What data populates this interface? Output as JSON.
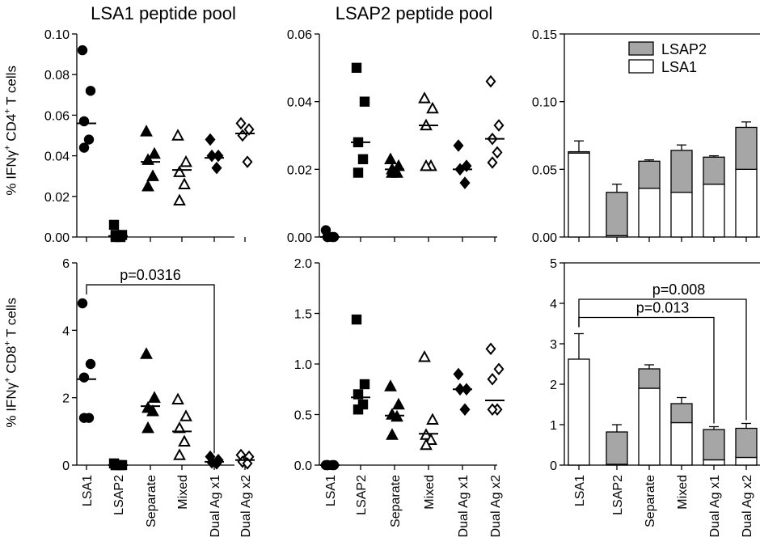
{
  "titles": {
    "left": "LSA1 peptide pool",
    "middle": "LSAP2 peptide pool"
  },
  "ylabels": {
    "top": {
      "pre": "% IFN",
      "g": "γ",
      "sup1": "+",
      "mid": " CD4",
      "sup2": "+",
      "post": " T cells"
    },
    "bottom": {
      "pre": "% IFN",
      "g": "γ",
      "sup1": "+",
      "mid": " CD8",
      "sup2": "+",
      "post": " T cells"
    }
  },
  "chart_data": [
    {
      "type": "scatter",
      "panel": "top-left",
      "title": "LSA1 peptide pool",
      "categories": [
        "LSA1",
        "LSAP2",
        "Separate",
        "Mixed",
        "Dual Ag x1",
        "Dual Ag x2"
      ],
      "ylim": [
        0,
        0.1
      ],
      "yticks": [
        "0.00",
        "0.02",
        "0.04",
        "0.06",
        "0.08",
        "0.10"
      ],
      "markers": [
        "circle",
        "square",
        "triangle",
        "triangle-open",
        "diamond",
        "diamond-open"
      ],
      "points": [
        [
          0.092,
          0.072,
          0.057,
          0.048,
          0.044
        ],
        [
          0.006,
          0.001,
          0.001,
          0.0,
          0.0
        ],
        [
          0.052,
          0.041,
          0.038,
          0.03,
          0.025
        ],
        [
          0.05,
          0.037,
          0.032,
          0.026,
          0.018
        ],
        [
          0.048,
          0.04,
          0.04,
          0.034
        ],
        [
          0.056,
          0.053,
          0.05,
          0.037
        ]
      ],
      "medians": [
        0.056,
        0.0005,
        0.037,
        0.033,
        0.039,
        0.051
      ]
    },
    {
      "type": "scatter",
      "panel": "top-middle",
      "title": "LSAP2 peptide pool",
      "categories": [
        "LSA1",
        "LSAP2",
        "Separate",
        "Mixed",
        "Dual Ag x1",
        "Dual Ag x2"
      ],
      "ylim": [
        0,
        0.06
      ],
      "yticks": [
        "0.00",
        "0.02",
        "0.04",
        "0.06"
      ],
      "markers": [
        "circle",
        "square",
        "triangle",
        "triangle-open",
        "diamond",
        "diamond-open"
      ],
      "points": [
        [
          0.002,
          0.0,
          0.0,
          0.0,
          0.0
        ],
        [
          0.05,
          0.04,
          0.028,
          0.023,
          0.019
        ],
        [
          0.023,
          0.021,
          0.02,
          0.019,
          0.019
        ],
        [
          0.041,
          0.038,
          0.033,
          0.021,
          0.021
        ],
        [
          0.027,
          0.021,
          0.02,
          0.016
        ],
        [
          0.046,
          0.033,
          0.029,
          0.025,
          0.022
        ]
      ],
      "medians": [
        0.0,
        0.028,
        0.02,
        0.033,
        0.02,
        0.029
      ]
    },
    {
      "type": "bar",
      "panel": "top-right",
      "stacked": true,
      "categories": [
        "LSA1",
        "LSAP2",
        "Separate",
        "Mixed",
        "Dual Ag x1",
        "Dual Ag x2"
      ],
      "ylim": [
        0,
        0.15
      ],
      "yticks": [
        "0.00",
        "0.05",
        "0.10",
        "0.15"
      ],
      "legend": "top-right",
      "series": [
        {
          "name": "LSA1",
          "color": "#ffffff",
          "values": [
            0.062,
            0.001,
            0.036,
            0.033,
            0.039,
            0.05
          ],
          "errors": [
            0.0,
            0.0015,
            0.004,
            0.004,
            0.004,
            0.003
          ]
        },
        {
          "name": "LSAP2",
          "color": "#a6a6a6",
          "values": [
            0.001,
            0.032,
            0.02,
            0.031,
            0.02,
            0.031
          ],
          "errors": [
            0.008,
            0.006,
            0.001,
            0.004,
            0.001,
            0.004
          ]
        }
      ]
    },
    {
      "type": "scatter",
      "panel": "bottom-left",
      "categories": [
        "LSA1",
        "LSAP2",
        "Separate",
        "Mixed",
        "Dual Ag x1",
        "Dual Ag x2"
      ],
      "ylim": [
        0,
        6
      ],
      "yticks": [
        "0",
        "2",
        "4",
        "6"
      ],
      "markers": [
        "circle",
        "square",
        "triangle",
        "triangle-open",
        "diamond",
        "diamond-open"
      ],
      "points": [
        [
          4.8,
          3.0,
          2.6,
          1.4,
          1.4
        ],
        [
          0.05,
          0.0,
          0.0,
          0.0,
          0.0
        ],
        [
          3.3,
          2.0,
          1.7,
          1.6,
          1.1
        ],
        [
          1.95,
          1.45,
          1.1,
          0.7,
          0.3
        ],
        [
          0.25,
          0.15,
          0.08,
          0.05
        ],
        [
          0.3,
          0.25,
          0.1,
          0.05
        ]
      ],
      "medians": [
        2.55,
        0.0,
        1.75,
        1.0,
        0.1,
        0.15
      ],
      "annotations": [
        {
          "text": "p=0.0316",
          "from": "LSA1",
          "to": "Dual Ag x1",
          "y": 5.35
        }
      ]
    },
    {
      "type": "scatter",
      "panel": "bottom-middle",
      "categories": [
        "LSA1",
        "LSAP2",
        "Separate",
        "Mixed",
        "Dual Ag x1",
        "Dual Ag x2"
      ],
      "ylim": [
        0,
        2.0
      ],
      "yticks": [
        "0.0",
        "0.5",
        "1.0",
        "1.5",
        "2.0"
      ],
      "markers": [
        "circle",
        "square",
        "triangle",
        "triangle-open",
        "diamond",
        "diamond-open"
      ],
      "points": [
        [
          0.0,
          0.0,
          0.0,
          0.0,
          0.0
        ],
        [
          1.44,
          0.8,
          0.7,
          0.6,
          0.55
        ],
        [
          0.78,
          0.6,
          0.5,
          0.48,
          0.3
        ],
        [
          1.07,
          0.45,
          0.3,
          0.25,
          0.2
        ],
        [
          0.9,
          0.75,
          0.75,
          0.55
        ],
        [
          1.15,
          0.95,
          0.85,
          0.55,
          0.55
        ]
      ],
      "medians": [
        0.0,
        0.67,
        0.49,
        0.31,
        0.75,
        0.64
      ]
    },
    {
      "type": "bar",
      "panel": "bottom-right",
      "stacked": true,
      "categories": [
        "LSA1",
        "LSAP2",
        "Separate",
        "Mixed",
        "Dual Ag x1",
        "Dual Ag x2"
      ],
      "ylim": [
        0,
        5
      ],
      "yticks": [
        "0",
        "1",
        "2",
        "3",
        "4",
        "5"
      ],
      "series": [
        {
          "name": "LSA1",
          "color": "#ffffff",
          "values": [
            2.62,
            0.02,
            1.9,
            1.05,
            0.13,
            0.19
          ],
          "errors": [
            0.63,
            0.0,
            0.4,
            0.28,
            0.05,
            0.05
          ]
        },
        {
          "name": "LSAP2",
          "color": "#a6a6a6",
          "values": [
            0.0,
            0.8,
            0.48,
            0.47,
            0.75,
            0.72
          ],
          "errors": [
            0.0,
            0.18,
            0.1,
            0.15,
            0.07,
            0.12
          ]
        }
      ],
      "annotations": [
        {
          "text": "p=0.013",
          "from": "LSA1",
          "to": "Dual Ag x1",
          "y": 3.65
        },
        {
          "text": "p=0.008",
          "from": "LSA1",
          "to": "Dual Ag x2",
          "y": 4.1
        }
      ]
    }
  ]
}
